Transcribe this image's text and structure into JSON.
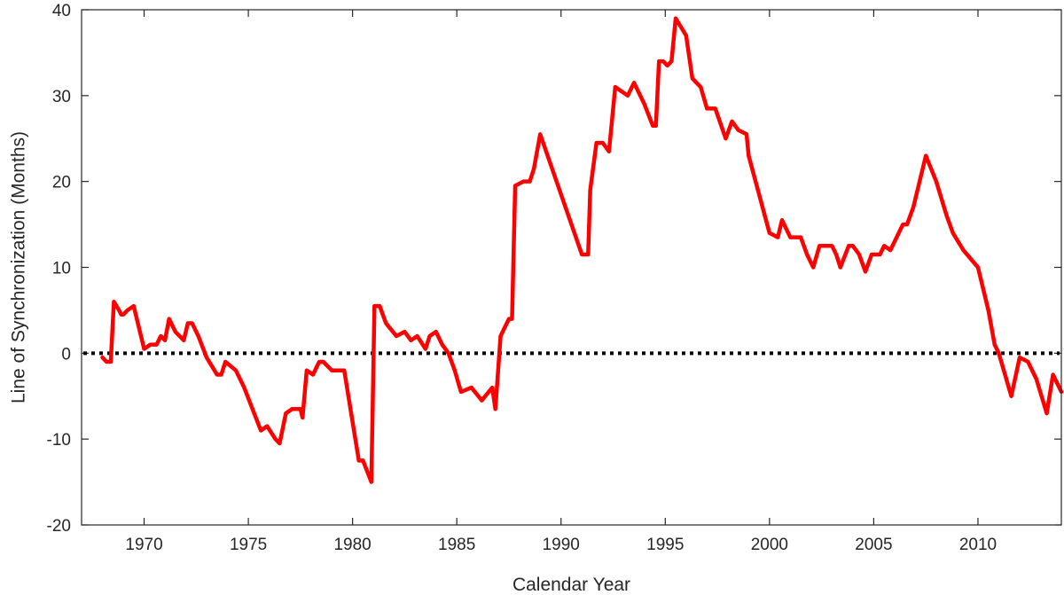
{
  "chart_data": {
    "type": "line",
    "xlabel": "Calendar Year",
    "ylabel": "Line of Synchronization (Months)",
    "xlim": [
      1967,
      2014
    ],
    "ylim": [
      -20,
      40
    ],
    "xticks": [
      1970,
      1975,
      1980,
      1985,
      1990,
      1995,
      2000,
      2005,
      2010
    ],
    "yticks": [
      -20,
      -10,
      0,
      10,
      20,
      30,
      40
    ],
    "grid": false,
    "reference_line": {
      "y": 0,
      "style": "dotted",
      "color": "#000000"
    },
    "series": [
      {
        "color": "#ff0000",
        "x": [
          1968.0,
          1968.2,
          1968.4,
          1968.55,
          1968.8,
          1968.9,
          1969.0,
          1969.2,
          1969.5,
          1970.0,
          1970.3,
          1970.6,
          1970.8,
          1971.0,
          1971.2,
          1971.5,
          1971.7,
          1971.9,
          1972.1,
          1972.3,
          1972.6,
          1973.0,
          1973.5,
          1973.7,
          1973.9,
          1974.4,
          1974.8,
          1975.2,
          1975.6,
          1975.9,
          1976.3,
          1976.5,
          1976.8,
          1977.1,
          1977.5,
          1977.6,
          1977.8,
          1978.1,
          1978.4,
          1978.6,
          1979.0,
          1979.6,
          1980.0,
          1980.3,
          1980.5,
          1980.9,
          1981.05,
          1981.3,
          1981.6,
          1982.1,
          1982.5,
          1982.8,
          1983.1,
          1983.5,
          1983.7,
          1984.0,
          1984.3,
          1984.6,
          1984.9,
          1985.2,
          1985.7,
          1986.2,
          1986.7,
          1986.85,
          1987.1,
          1987.5,
          1987.65,
          1987.8,
          1988.2,
          1988.5,
          1988.7,
          1989.0,
          1990.0,
          1991.0,
          1991.3,
          1991.4,
          1991.7,
          1992.0,
          1992.3,
          1992.6,
          1992.9,
          1993.2,
          1993.5,
          1994.0,
          1994.4,
          1994.55,
          1994.7,
          1994.9,
          1995.1,
          1995.3,
          1995.5,
          1996.0,
          1996.3,
          1996.7,
          1997.0,
          1997.4,
          1997.9,
          1998.2,
          1998.5,
          1998.9,
          1999.0,
          1999.5,
          2000.0,
          2000.4,
          2000.6,
          2000.8,
          2001.0,
          2001.5,
          2001.8,
          2002.1,
          2002.4,
          2002.7,
          2003.0,
          2003.2,
          2003.4,
          2003.8,
          2004.0,
          2004.3,
          2004.6,
          2004.9,
          2005.3,
          2005.5,
          2005.8,
          2006.2,
          2006.4,
          2006.6,
          2006.9,
          2007.5,
          2008.0,
          2008.5,
          2008.8,
          2009.3,
          2010.0,
          2010.5,
          2010.8,
          2011.0,
          2011.6,
          2012.0,
          2012.4,
          2012.8,
          2013.3,
          2013.6,
          2014.0
        ],
        "y": [
          -0.5,
          -1.0,
          -1.0,
          6.0,
          5.0,
          4.5,
          4.5,
          5.0,
          5.5,
          0.5,
          1.0,
          1.0,
          2.0,
          1.5,
          4.0,
          2.5,
          2.0,
          1.5,
          3.5,
          3.5,
          2.0,
          -0.5,
          -2.5,
          -2.5,
          -1.0,
          -2.0,
          -4.0,
          -6.5,
          -9.0,
          -8.5,
          -10.0,
          -10.5,
          -7.0,
          -6.5,
          -6.5,
          -7.5,
          -2.0,
          -2.5,
          -1.0,
          -1.0,
          -2.0,
          -2.0,
          -8.0,
          -12.5,
          -12.5,
          -15.0,
          5.5,
          5.5,
          3.5,
          2.0,
          2.5,
          1.5,
          2.0,
          0.5,
          2.0,
          2.5,
          1.0,
          0.0,
          -2.0,
          -4.5,
          -4.0,
          -5.5,
          -4.0,
          -6.5,
          2.0,
          4.0,
          4.0,
          19.5,
          20.0,
          20.0,
          21.5,
          25.5,
          18.5,
          11.5,
          11.5,
          19.0,
          24.5,
          24.5,
          23.5,
          31.0,
          30.5,
          30.0,
          31.5,
          29.0,
          26.5,
          26.5,
          34.0,
          34.0,
          33.5,
          34.0,
          39.0,
          37.0,
          32.0,
          31.0,
          28.5,
          28.5,
          25.0,
          27.0,
          26.0,
          25.5,
          23.0,
          18.5,
          14.0,
          13.5,
          15.5,
          14.5,
          13.5,
          13.5,
          11.5,
          10.0,
          12.5,
          12.5,
          12.5,
          11.5,
          10.0,
          12.5,
          12.5,
          11.5,
          9.5,
          11.5,
          11.5,
          12.5,
          12.0,
          14.0,
          15.0,
          15.0,
          17.0,
          23.0,
          20.0,
          16.0,
          14.0,
          12.0,
          10.0,
          5.0,
          1.0,
          0.0,
          -5.0,
          -0.5,
          -1.0,
          -3.0,
          -7.0,
          -2.5,
          -4.5
        ]
      }
    ]
  }
}
